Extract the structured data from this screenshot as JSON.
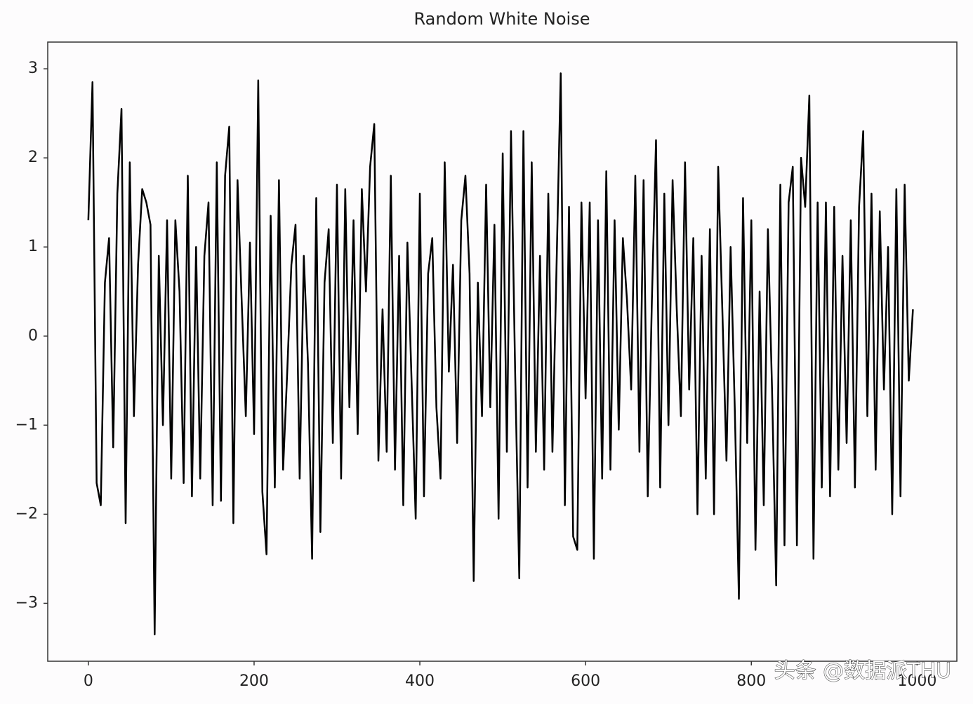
{
  "chart_data": {
    "type": "line",
    "title": "Random White Noise",
    "x": [
      0,
      5,
      10,
      15,
      20,
      25,
      30,
      35,
      40,
      45,
      50,
      55,
      60,
      65,
      70,
      75,
      80,
      85,
      90,
      95,
      100,
      105,
      110,
      115,
      120,
      125,
      130,
      135,
      140,
      145,
      150,
      155,
      160,
      165,
      170,
      175,
      180,
      185,
      190,
      195,
      200,
      205,
      210,
      215,
      220,
      225,
      230,
      235,
      240,
      245,
      250,
      255,
      260,
      265,
      270,
      275,
      280,
      285,
      290,
      295,
      300,
      305,
      310,
      315,
      320,
      325,
      330,
      335,
      340,
      345,
      350,
      355,
      360,
      365,
      370,
      375,
      380,
      385,
      390,
      395,
      400,
      405,
      410,
      415,
      420,
      425,
      430,
      435,
      440,
      445,
      450,
      455,
      460,
      465,
      470,
      475,
      480,
      485,
      490,
      495,
      500,
      505,
      510,
      515,
      520,
      525,
      530,
      535,
      540,
      545,
      550,
      555,
      560,
      565,
      570,
      575,
      580,
      585,
      590,
      595,
      600,
      605,
      610,
      615,
      620,
      625,
      630,
      635,
      640,
      645,
      650,
      655,
      660,
      665,
      670,
      675,
      680,
      685,
      690,
      695,
      700,
      705,
      710,
      715,
      720,
      725,
      730,
      735,
      740,
      745,
      750,
      755,
      760,
      765,
      770,
      775,
      780,
      785,
      790,
      795,
      800,
      805,
      810,
      815,
      820,
      825,
      830,
      835,
      840,
      845,
      850,
      855,
      860,
      865,
      870,
      875,
      880,
      885,
      890,
      895,
      900,
      905,
      910,
      915,
      920,
      925,
      930,
      935,
      940,
      945,
      950,
      955,
      960,
      965,
      970,
      975,
      980,
      985,
      990,
      995
    ],
    "series": [
      {
        "color": "#000000",
        "values": [
          1.3,
          2.85,
          -1.65,
          -1.9,
          0.6,
          1.1,
          -1.25,
          1.6,
          2.55,
          -2.1,
          1.95,
          -0.9,
          0.8,
          1.65,
          1.5,
          1.25,
          -3.35,
          0.9,
          -1.0,
          1.3,
          -1.6,
          1.3,
          0.5,
          -1.65,
          1.8,
          -1.8,
          1.0,
          -1.6,
          0.9,
          1.5,
          -1.9,
          1.95,
          -1.85,
          1.8,
          2.35,
          -2.1,
          1.75,
          0.4,
          -0.9,
          1.05,
          -1.1,
          2.87,
          -1.75,
          -2.45,
          1.35,
          -1.7,
          1.75,
          -1.5,
          -0.4,
          0.8,
          1.25,
          -1.6,
          0.9,
          -0.3,
          -2.5,
          1.55,
          -2.2,
          0.6,
          1.2,
          -1.2,
          1.7,
          -1.6,
          1.65,
          -0.8,
          1.3,
          -1.1,
          1.65,
          0.5,
          1.9,
          2.38,
          -1.4,
          0.3,
          -1.3,
          1.8,
          -1.5,
          0.9,
          -1.9,
          1.05,
          -0.5,
          -2.05,
          1.6,
          -1.8,
          0.7,
          1.1,
          -0.8,
          -1.6,
          1.95,
          -0.4,
          0.8,
          -1.2,
          1.3,
          1.8,
          0.7,
          -2.75,
          0.6,
          -0.9,
          1.7,
          -0.8,
          1.25,
          -2.05,
          2.05,
          -1.3,
          2.3,
          -0.4,
          -2.72,
          2.3,
          -1.7,
          1.95,
          -1.3,
          0.9,
          -1.5,
          1.6,
          -1.3,
          0.8,
          2.95,
          -1.9,
          1.45,
          -2.25,
          -2.4,
          1.5,
          -0.7,
          1.5,
          -2.5,
          1.3,
          -1.6,
          1.85,
          -1.5,
          1.3,
          -1.05,
          1.1,
          0.4,
          -0.6,
          1.8,
          -1.3,
          1.75,
          -1.8,
          0.4,
          2.2,
          -1.7,
          1.6,
          -1.0,
          1.75,
          0.3,
          -0.9,
          1.95,
          -0.6,
          1.1,
          -2.0,
          0.9,
          -1.6,
          1.2,
          -2.0,
          1.9,
          0.3,
          -1.4,
          1.0,
          -0.8,
          -2.95,
          1.55,
          -1.2,
          1.3,
          -2.4,
          0.5,
          -1.9,
          1.2,
          -0.6,
          -2.8,
          1.7,
          -2.35,
          1.5,
          1.9,
          -2.35,
          2.0,
          1.45,
          2.7,
          -2.5,
          1.5,
          -1.7,
          1.5,
          -1.8,
          1.45,
          -1.5,
          0.9,
          -1.2,
          1.3,
          -1.7,
          1.45,
          2.3,
          -0.9,
          1.6,
          -1.5,
          1.4,
          -0.6,
          1.0,
          -2.0,
          1.65,
          -1.8,
          1.7,
          -0.5,
          0.3
        ]
      }
    ],
    "xlim": [
      -49,
      1048
    ],
    "xticks": [
      0,
      200,
      400,
      600,
      800,
      1000
    ],
    "ylim": [
      -3.65,
      3.3
    ],
    "yticks": [
      {
        "value": -3,
        "label": "−3"
      },
      {
        "value": -2,
        "label": "−2"
      },
      {
        "value": -1,
        "label": "−1"
      },
      0,
      1,
      2,
      3
    ],
    "grid": false
  },
  "watermark": "头条 @数据派THU"
}
